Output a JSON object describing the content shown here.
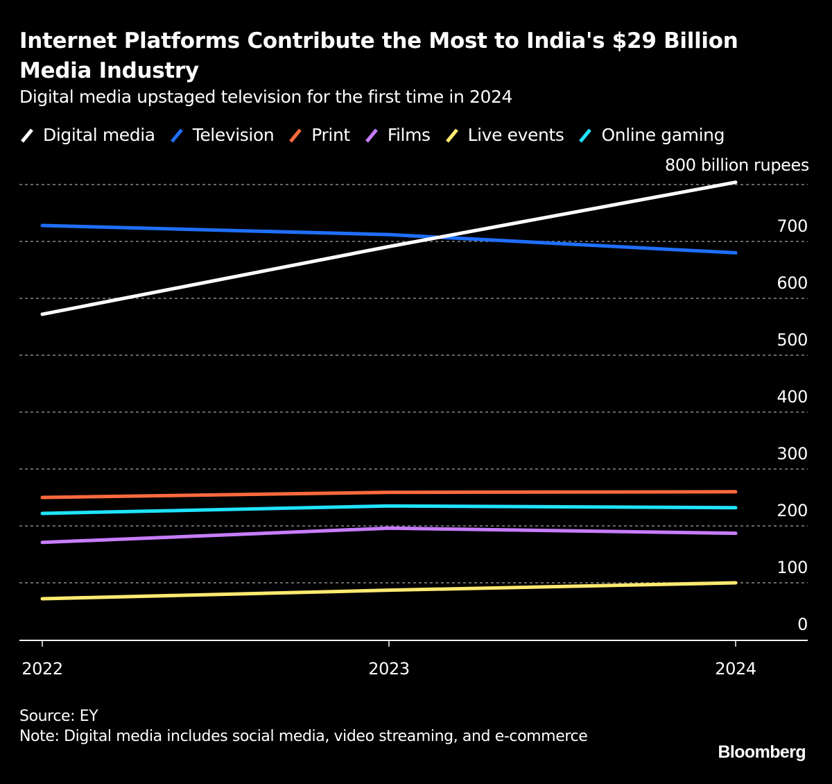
{
  "chart_data": {
    "type": "line",
    "title": "Internet Platforms Contribute the Most to India's $29 Billion Media Industry",
    "subtitle": "Digital media upstaged television for the first time in 2024",
    "xlabel": "",
    "ylabel": "",
    "unit_label": "800 billion rupees",
    "x": [
      "2022",
      "2023",
      "2024"
    ],
    "ylim": [
      0,
      800
    ],
    "yticks": [
      0,
      100,
      200,
      300,
      400,
      500,
      600,
      700,
      800
    ],
    "ytick_labels": [
      "0",
      "100",
      "200",
      "300",
      "400",
      "500",
      "600",
      "700",
      ""
    ],
    "grid": true,
    "legend_position": "top-left",
    "series": [
      {
        "name": "Digital media",
        "color": "#ffffff",
        "values": [
          572,
          691,
          804
        ]
      },
      {
        "name": "Television",
        "color": "#1f6fff",
        "values": [
          728,
          712,
          680
        ]
      },
      {
        "name": "Print",
        "color": "#ff6a3d",
        "values": [
          250,
          259,
          260
        ]
      },
      {
        "name": "Films",
        "color": "#c77dff",
        "values": [
          171,
          196,
          187
        ]
      },
      {
        "name": "Live events",
        "color": "#ffea70",
        "values": [
          72,
          87,
          100
        ]
      },
      {
        "name": "Online gaming",
        "color": "#1fe3ff",
        "values": [
          222,
          235,
          232
        ]
      }
    ]
  },
  "footer": {
    "source": "Source: EY",
    "note": "Note: Digital media includes social media, video streaming, and e-commerce",
    "brand": "Bloomberg"
  }
}
